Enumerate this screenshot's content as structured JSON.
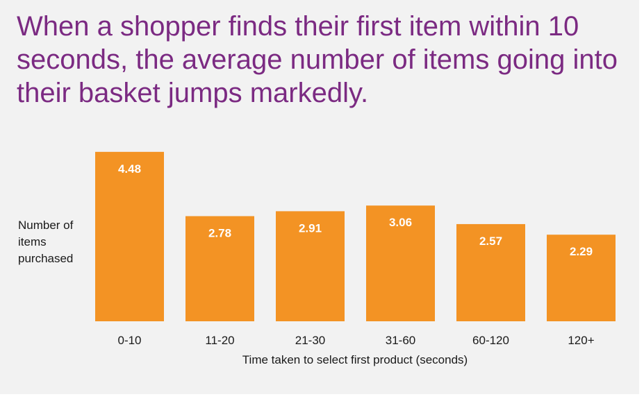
{
  "chart_data": {
    "type": "bar",
    "title": "When a shopper finds their first item within 10 seconds, the average number of items going into their basket jumps markedly.",
    "ylabel": "Number of items purchased",
    "xlabel": "Time taken to select first product (seconds)",
    "categories": [
      "0-10",
      "11-20",
      "21-30",
      "31-60",
      "60-120",
      "120+"
    ],
    "values": [
      4.48,
      2.78,
      2.91,
      3.06,
      2.57,
      2.29
    ],
    "value_labels": [
      "4.48",
      "2.78",
      "2.91",
      "3.06",
      "2.57",
      "2.29"
    ],
    "ylim": [
      0,
      5
    ],
    "grid": false,
    "legend": "none"
  },
  "colors": {
    "bar": "#f39324",
    "title": "#7b2a82",
    "background": "#f2f2f2",
    "datalabel": "#ffffff"
  }
}
